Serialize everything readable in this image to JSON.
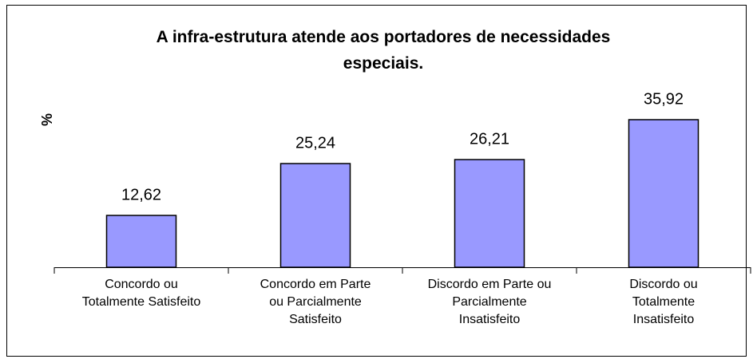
{
  "chart_data": {
    "type": "bar",
    "title": "A infra-estrutura atende aos portadores de  necessidades\nespeciais.",
    "y_label": "%",
    "categories": [
      "Concordo ou\nTotalmente Satisfeito",
      "Concordo em Parte\nou Parcialmente\nSatisfeito",
      "Discordo em Parte ou\nParcialmente\nInsatisfeito",
      "Discordo ou\nTotalmente\nInsatisfeito"
    ],
    "values": [
      12.62,
      25.24,
      26.21,
      35.92
    ],
    "value_labels": [
      "12,62",
      "25,24",
      "26,21",
      "35,92"
    ],
    "color": "#9999ff",
    "ylim": [
      0,
      40
    ]
  }
}
